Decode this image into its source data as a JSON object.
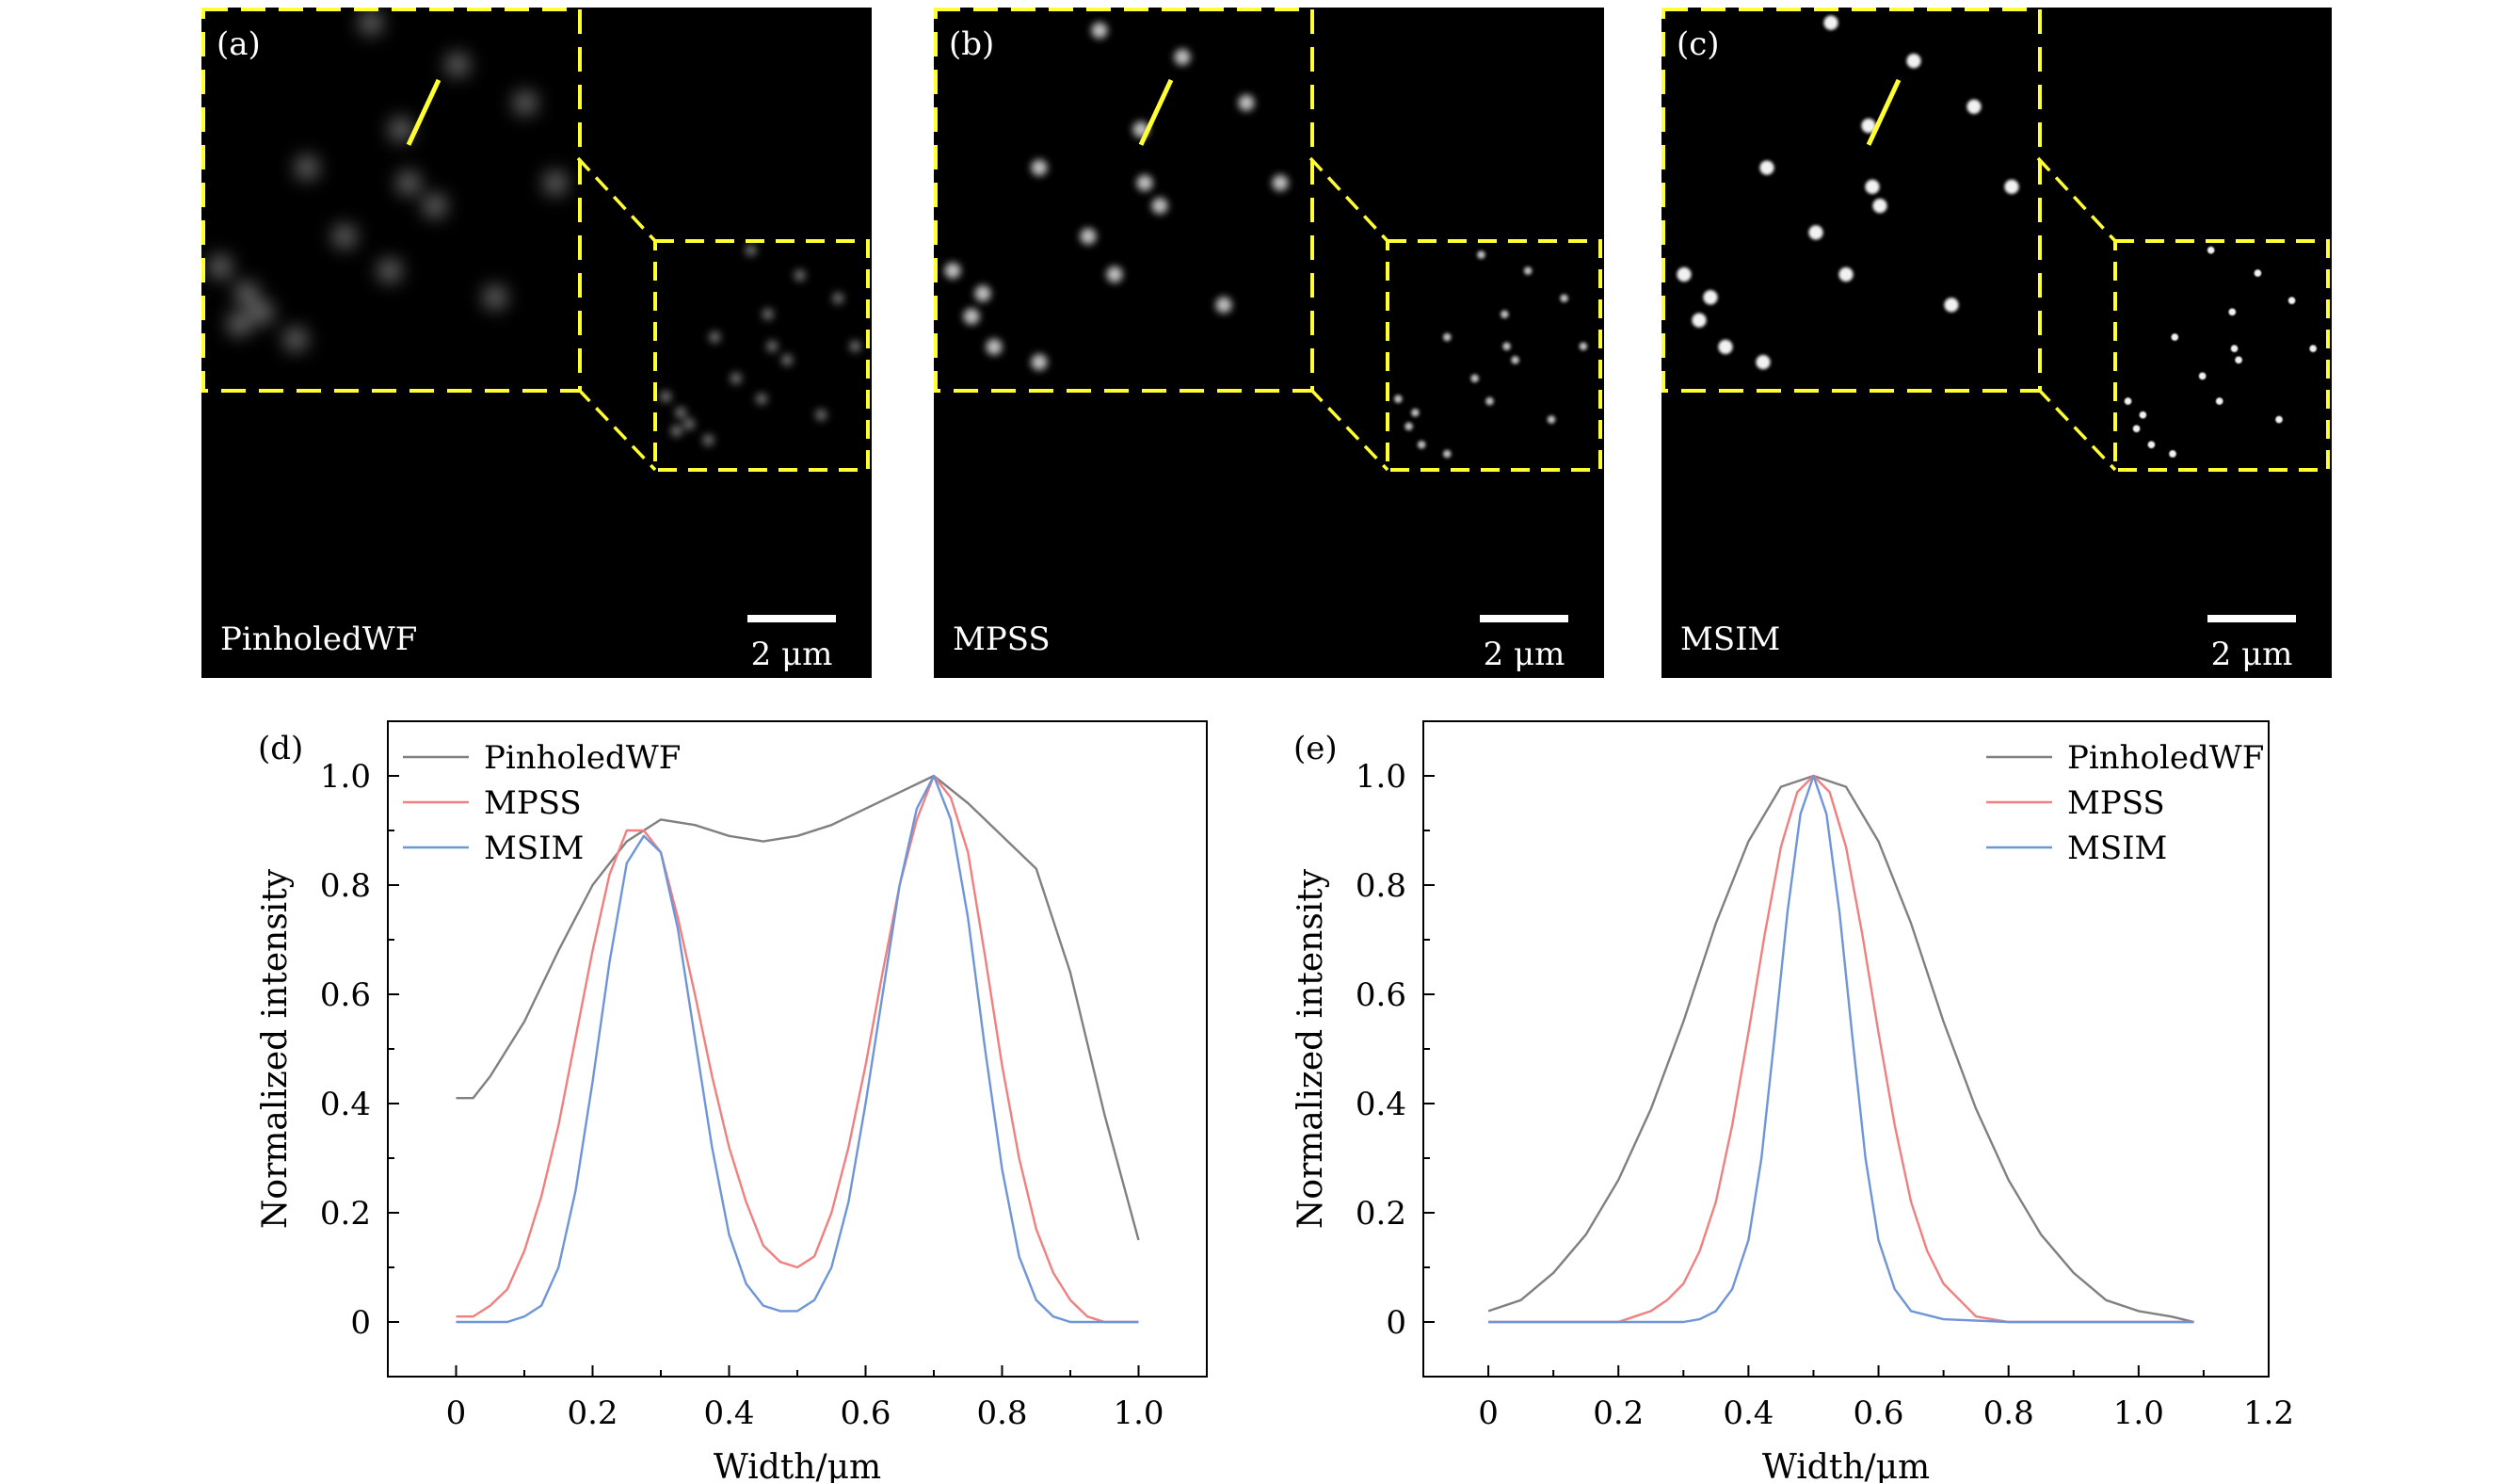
{
  "panels": [
    {
      "letter": "(a)",
      "method": "PinholedWF",
      "scalebar_label": "2 μm",
      "inset_colour": "#ffff33",
      "spot_blur": 10,
      "spot_alpha": 0.55,
      "spots": [
        [
          0.45,
          0.04
        ],
        [
          0.68,
          0.15
        ],
        [
          0.86,
          0.25
        ],
        [
          0.53,
          0.32
        ],
        [
          0.28,
          0.42
        ],
        [
          0.55,
          0.46
        ],
        [
          0.62,
          0.52
        ],
        [
          0.94,
          0.46
        ],
        [
          0.38,
          0.6
        ],
        [
          0.5,
          0.69
        ],
        [
          0.05,
          0.68
        ],
        [
          0.12,
          0.75
        ],
        [
          0.16,
          0.8
        ],
        [
          0.25,
          0.87
        ],
        [
          0.78,
          0.76
        ],
        [
          0.1,
          0.83
        ]
      ]
    },
    {
      "letter": "(b)",
      "method": "MPSS",
      "scalebar_label": "2 μm",
      "inset_colour": "#ffff33",
      "spot_blur": 4,
      "spot_alpha": 0.75,
      "spots": [
        [
          0.44,
          0.06
        ],
        [
          0.66,
          0.13
        ],
        [
          0.83,
          0.25
        ],
        [
          0.55,
          0.32
        ],
        [
          0.28,
          0.42
        ],
        [
          0.56,
          0.46
        ],
        [
          0.6,
          0.52
        ],
        [
          0.92,
          0.46
        ],
        [
          0.41,
          0.6
        ],
        [
          0.48,
          0.7
        ],
        [
          0.05,
          0.69
        ],
        [
          0.13,
          0.75
        ],
        [
          0.1,
          0.81
        ],
        [
          0.16,
          0.89
        ],
        [
          0.28,
          0.93
        ],
        [
          0.77,
          0.78
        ]
      ]
    },
    {
      "letter": "(c)",
      "method": "MSIM",
      "scalebar_label": "2 μm",
      "inset_colour": "#ffff33",
      "spot_blur": 1.6,
      "spot_alpha": 0.95,
      "spots": [
        [
          0.45,
          0.04
        ],
        [
          0.67,
          0.14
        ],
        [
          0.83,
          0.26
        ],
        [
          0.55,
          0.31
        ],
        [
          0.28,
          0.42
        ],
        [
          0.56,
          0.47
        ],
        [
          0.58,
          0.52
        ],
        [
          0.93,
          0.47
        ],
        [
          0.41,
          0.59
        ],
        [
          0.49,
          0.7
        ],
        [
          0.06,
          0.7
        ],
        [
          0.13,
          0.76
        ],
        [
          0.1,
          0.82
        ],
        [
          0.17,
          0.89
        ],
        [
          0.27,
          0.93
        ],
        [
          0.77,
          0.78
        ]
      ]
    }
  ],
  "chart_data": [
    {
      "type": "line",
      "panel_letter": "(d)",
      "xlabel": "Width/μm",
      "ylabel": "Normalized intensity",
      "xlim": [
        -0.1,
        1.1
      ],
      "ylim": [
        -0.1,
        1.1
      ],
      "xticks": [
        0,
        0.2,
        0.4,
        0.6,
        0.8,
        1.0
      ],
      "xtick_labels": [
        "0",
        "0.2",
        "0.4",
        "0.6",
        "0.8",
        "1.0"
      ],
      "yticks": [
        0,
        0.2,
        0.4,
        0.6,
        0.8,
        1.0
      ],
      "ytick_labels": [
        "0",
        "0.2",
        "0.4",
        "0.6",
        "0.8",
        "1.0"
      ],
      "grid": false,
      "legend_position": "top-left",
      "series": [
        {
          "name": "PinholedWF",
          "color": "#808080",
          "x": [
            0,
            0.025,
            0.05,
            0.1,
            0.15,
            0.2,
            0.25,
            0.3,
            0.35,
            0.4,
            0.45,
            0.5,
            0.55,
            0.6,
            0.65,
            0.7,
            0.75,
            0.8,
            0.85,
            0.9,
            0.95,
            1.0
          ],
          "y": [
            0.41,
            0.41,
            0.45,
            0.55,
            0.68,
            0.8,
            0.88,
            0.92,
            0.91,
            0.89,
            0.88,
            0.89,
            0.91,
            0.94,
            0.97,
            1.0,
            0.95,
            0.89,
            0.83,
            0.64,
            0.38,
            0.15
          ]
        },
        {
          "name": "MPSS",
          "color": "#f08080",
          "x": [
            0,
            0.025,
            0.05,
            0.075,
            0.1,
            0.125,
            0.15,
            0.175,
            0.2,
            0.225,
            0.25,
            0.275,
            0.3,
            0.325,
            0.35,
            0.375,
            0.4,
            0.425,
            0.45,
            0.475,
            0.5,
            0.525,
            0.55,
            0.575,
            0.6,
            0.625,
            0.65,
            0.675,
            0.7,
            0.725,
            0.75,
            0.775,
            0.8,
            0.825,
            0.85,
            0.875,
            0.9,
            0.925,
            0.95,
            0.975,
            1.0
          ],
          "y": [
            0.01,
            0.01,
            0.03,
            0.06,
            0.13,
            0.23,
            0.36,
            0.52,
            0.68,
            0.82,
            0.9,
            0.9,
            0.86,
            0.74,
            0.6,
            0.45,
            0.32,
            0.22,
            0.14,
            0.11,
            0.1,
            0.12,
            0.2,
            0.32,
            0.47,
            0.64,
            0.8,
            0.92,
            1.0,
            0.96,
            0.86,
            0.67,
            0.47,
            0.3,
            0.17,
            0.09,
            0.04,
            0.01,
            0.0,
            0.0,
            0.0
          ]
        },
        {
          "name": "MSIM",
          "color": "#6d95d8",
          "x": [
            0,
            0.025,
            0.05,
            0.075,
            0.1,
            0.125,
            0.15,
            0.175,
            0.2,
            0.225,
            0.25,
            0.275,
            0.3,
            0.325,
            0.35,
            0.375,
            0.4,
            0.425,
            0.45,
            0.475,
            0.5,
            0.525,
            0.55,
            0.575,
            0.6,
            0.625,
            0.65,
            0.675,
            0.7,
            0.725,
            0.75,
            0.775,
            0.8,
            0.825,
            0.85,
            0.875,
            0.9,
            0.925,
            0.95,
            0.975,
            1.0
          ],
          "y": [
            0.0,
            0.0,
            0.0,
            0.0,
            0.01,
            0.03,
            0.1,
            0.24,
            0.44,
            0.66,
            0.84,
            0.89,
            0.86,
            0.72,
            0.52,
            0.32,
            0.16,
            0.07,
            0.03,
            0.02,
            0.02,
            0.04,
            0.1,
            0.22,
            0.4,
            0.6,
            0.8,
            0.94,
            1.0,
            0.92,
            0.74,
            0.5,
            0.28,
            0.12,
            0.04,
            0.01,
            0.0,
            0.0,
            0.0,
            0.0,
            0.0
          ]
        }
      ]
    },
    {
      "type": "line",
      "panel_letter": "(e)",
      "xlabel": "Width/μm",
      "ylabel": "Normalized intensity",
      "xlim": [
        -0.1,
        1.2
      ],
      "ylim": [
        -0.1,
        1.1
      ],
      "xticks": [
        0,
        0.2,
        0.4,
        0.6,
        0.8,
        1.0,
        1.2
      ],
      "xtick_labels": [
        "0",
        "0.2",
        "0.4",
        "0.6",
        "0.8",
        "1.0",
        "1.2"
      ],
      "yticks": [
        0,
        0.2,
        0.4,
        0.6,
        0.8,
        1.0
      ],
      "ytick_labels": [
        "0",
        "0.2",
        "0.4",
        "0.6",
        "0.8",
        "1.0"
      ],
      "grid": false,
      "legend_position": "top-right",
      "series": [
        {
          "name": "PinholedWF",
          "color": "#808080",
          "x": [
            0,
            0.05,
            0.1,
            0.15,
            0.2,
            0.25,
            0.3,
            0.35,
            0.4,
            0.45,
            0.5,
            0.55,
            0.6,
            0.65,
            0.7,
            0.75,
            0.8,
            0.85,
            0.9,
            0.95,
            1.0,
            1.05,
            1.085
          ],
          "y": [
            0.02,
            0.04,
            0.09,
            0.16,
            0.26,
            0.39,
            0.55,
            0.73,
            0.88,
            0.98,
            1.0,
            0.98,
            0.88,
            0.73,
            0.55,
            0.39,
            0.26,
            0.16,
            0.09,
            0.04,
            0.02,
            0.01,
            0.0
          ]
        },
        {
          "name": "MPSS",
          "color": "#f08080",
          "x": [
            0,
            0.05,
            0.1,
            0.15,
            0.2,
            0.225,
            0.25,
            0.275,
            0.3,
            0.325,
            0.35,
            0.375,
            0.4,
            0.425,
            0.45,
            0.475,
            0.5,
            0.525,
            0.55,
            0.575,
            0.6,
            0.625,
            0.65,
            0.675,
            0.7,
            0.725,
            0.75,
            0.8,
            0.9,
            1.0,
            1.085
          ],
          "y": [
            0,
            0,
            0,
            0,
            0,
            0.01,
            0.02,
            0.04,
            0.07,
            0.13,
            0.22,
            0.36,
            0.53,
            0.71,
            0.87,
            0.97,
            1.0,
            0.97,
            0.87,
            0.71,
            0.53,
            0.36,
            0.22,
            0.13,
            0.07,
            0.04,
            0.01,
            0,
            0,
            0,
            0
          ]
        },
        {
          "name": "MSIM",
          "color": "#6d95d8",
          "x": [
            0,
            0.1,
            0.2,
            0.3,
            0.325,
            0.35,
            0.375,
            0.4,
            0.42,
            0.44,
            0.46,
            0.48,
            0.5,
            0.52,
            0.54,
            0.56,
            0.58,
            0.6,
            0.625,
            0.65,
            0.7,
            0.8,
            1.0,
            1.085
          ],
          "y": [
            0,
            0,
            0,
            0,
            0.005,
            0.02,
            0.06,
            0.15,
            0.3,
            0.52,
            0.75,
            0.93,
            1.0,
            0.93,
            0.75,
            0.52,
            0.3,
            0.15,
            0.06,
            0.02,
            0.005,
            0,
            0,
            0
          ]
        }
      ]
    }
  ]
}
